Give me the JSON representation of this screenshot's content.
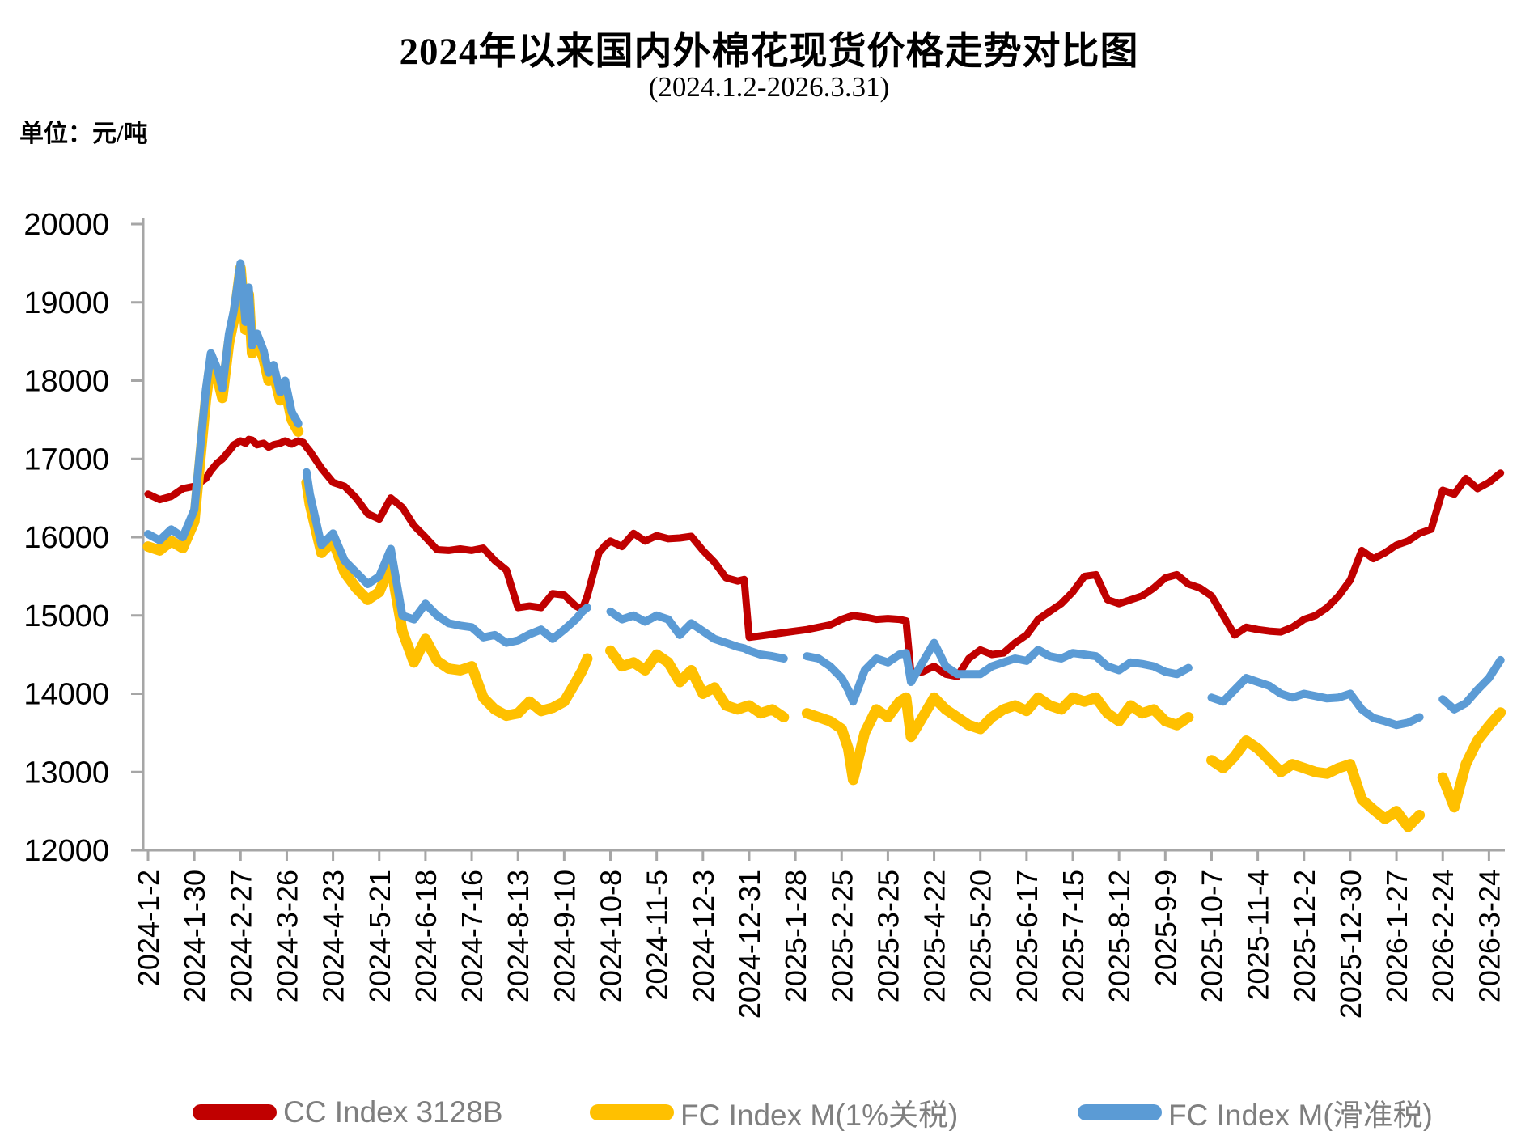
{
  "header": {
    "title": "2024年以来国内外棉花现货价格走势对比图",
    "subtitle": "(2024.1.2-2026.3.31)",
    "unit_label": "单位：元/吨"
  },
  "colors": {
    "cc_index_red": "#C00000",
    "fc_1pct_yellow": "#FFC000",
    "fc_sliding_blue": "#5B9BD5",
    "axis_gray": "#A6A6A6",
    "tick_text": "#000000",
    "legend_text": "#7F7F7F",
    "background": "#FFFFFF"
  },
  "chart_data": {
    "type": "line",
    "title": "2024年以来国内外棉花现货价格走势对比图",
    "subtitle": "(2024.1.2-2026.3.31)",
    "ylabel": "单位：元/吨",
    "xlabel": "",
    "grid": false,
    "legend_position": "bottom",
    "ylim": [
      12000,
      20000
    ],
    "y_tick_labels": [
      "20000",
      "19000",
      "18000",
      "17000",
      "16000",
      "15000",
      "14000",
      "13000",
      "12000"
    ],
    "y_ticks": [
      20000,
      19000,
      18000,
      17000,
      16000,
      15000,
      14000,
      13000,
      12000
    ],
    "x_start_date": "2024-1-2",
    "x_end_date": "2026-3-31",
    "x_tick_days": [
      0,
      28,
      56,
      84,
      112,
      140,
      168,
      196,
      224,
      252,
      280,
      308,
      336,
      364,
      392,
      420,
      448,
      476,
      504,
      532,
      560,
      588,
      616,
      644,
      672,
      700,
      728,
      756,
      784,
      812
    ],
    "x_tick_labels": [
      "2024-1-2",
      "2024-1-30",
      "2024-2-27",
      "2024-3-26",
      "2024-4-23",
      "2024-5-21",
      "2024-6-18",
      "2024-7-16",
      "2024-8-13",
      "2024-9-10",
      "2024-10-8",
      "2024-11-5",
      "2024-12-3",
      "2024-12-31",
      "2025-1-28",
      "2025-2-25",
      "2025-3-25",
      "2025-4-22",
      "2025-5-20",
      "2025-6-17",
      "2025-7-15",
      "2025-8-12",
      "2025-9-9",
      "2025-10-7",
      "2025-11-4",
      "2025-12-2",
      "2025-12-30",
      "2026-1-27",
      "2026-2-24",
      "2026-3-24"
    ],
    "x_days": [
      0,
      7,
      14,
      21,
      28,
      35,
      38,
      42,
      45,
      49,
      52,
      56,
      59,
      61,
      63,
      66,
      70,
      73,
      76,
      80,
      83,
      87,
      91,
      94,
      96,
      98,
      105,
      112,
      119,
      126,
      133,
      140,
      147,
      154,
      161,
      168,
      175,
      182,
      189,
      196,
      203,
      210,
      217,
      224,
      231,
      238,
      245,
      252,
      259,
      263,
      266,
      273,
      277,
      280,
      287,
      294,
      301,
      308,
      315,
      322,
      329,
      336,
      343,
      350,
      357,
      361,
      364,
      371,
      378,
      385,
      392,
      399,
      406,
      413,
      420,
      424,
      427,
      434,
      441,
      448,
      455,
      459,
      462,
      469,
      476,
      483,
      490,
      497,
      504,
      511,
      518,
      525,
      532,
      539,
      546,
      553,
      560,
      567,
      574,
      581,
      588,
      595,
      602,
      609,
      616,
      623,
      630,
      637,
      644,
      651,
      658,
      665,
      672,
      679,
      686,
      693,
      700,
      707,
      714,
      721,
      728,
      735,
      742,
      749,
      756,
      763,
      770,
      777,
      784,
      791,
      798,
      805,
      812,
      819
    ],
    "series": [
      {
        "name": "CC Index 3128B",
        "color": "#C00000",
        "values": [
          16550,
          16480,
          16520,
          16620,
          16650,
          16750,
          16850,
          16950,
          17000,
          17100,
          17180,
          17230,
          17200,
          17250,
          17240,
          17180,
          17200,
          17150,
          17180,
          17200,
          17230,
          17190,
          17230,
          17210,
          17150,
          17100,
          16880,
          16700,
          16650,
          16500,
          16300,
          16230,
          16500,
          16380,
          16150,
          16000,
          15840,
          15830,
          15850,
          15830,
          15860,
          15700,
          15580,
          15100,
          15120,
          15100,
          15280,
          15260,
          15120,
          15080,
          15250,
          15800,
          15900,
          15950,
          15880,
          16050,
          15950,
          16020,
          15980,
          15990,
          16010,
          15830,
          15680,
          15480,
          15440,
          15460,
          14720,
          14740,
          14760,
          14780,
          14800,
          14820,
          14850,
          14880,
          14950,
          14980,
          15000,
          14980,
          14950,
          14960,
          14950,
          14930,
          14250,
          14280,
          14350,
          14250,
          14220,
          14450,
          14560,
          14500,
          14520,
          14650,
          14750,
          14950,
          15050,
          15150,
          15300,
          15500,
          15520,
          15200,
          15150,
          15200,
          15250,
          15350,
          15480,
          15520,
          15400,
          15350,
          15250,
          15000,
          14750,
          14850,
          14820,
          14800,
          14790,
          14850,
          14950,
          15000,
          15100,
          15250,
          15450,
          15830,
          15725,
          15800,
          15900,
          15950,
          16050,
          16100,
          16600,
          16550,
          16750,
          16620,
          16700,
          16820
        ]
      },
      {
        "name": "FC Index M(1%关税)",
        "color": "#FFC000",
        "values": [
          15880,
          15830,
          15950,
          15860,
          16200,
          17750,
          18230,
          18030,
          17780,
          18480,
          18780,
          19440,
          18650,
          19100,
          18350,
          18500,
          18280,
          18000,
          18100,
          17750,
          17900,
          17500,
          17350,
          null,
          16700,
          16420,
          15800,
          15950,
          15550,
          15350,
          15200,
          15300,
          15650,
          14800,
          14400,
          14700,
          14420,
          14320,
          14300,
          14350,
          13950,
          13800,
          13720,
          13750,
          13900,
          13780,
          13820,
          13900,
          14150,
          14300,
          14450,
          null,
          null,
          14550,
          14350,
          14400,
          14300,
          14500,
          14400,
          14150,
          14300,
          14000,
          14080,
          13850,
          13800,
          13830,
          13850,
          13750,
          13800,
          13700,
          null,
          13750,
          13700,
          13650,
          13550,
          13300,
          12900,
          13500,
          13800,
          13700,
          13900,
          13950,
          13450,
          13700,
          13950,
          13800,
          13700,
          13600,
          13550,
          13700,
          13800,
          13850,
          13780,
          13950,
          13850,
          13800,
          13950,
          13900,
          13950,
          13750,
          13650,
          13850,
          13750,
          13800,
          13650,
          13600,
          13700,
          null,
          13150,
          13050,
          13200,
          13400,
          13300,
          13150,
          13000,
          13100,
          13050,
          13000,
          12980,
          13050,
          13100,
          12650,
          12520,
          12400,
          12500,
          12300,
          12450,
          null,
          12930,
          12550,
          13100,
          13400,
          13590,
          13760
        ]
      },
      {
        "name": "FC Index M(滑准税)",
        "color": "#5B9BD5",
        "values": [
          16040,
          15960,
          16100,
          16000,
          16350,
          17880,
          18350,
          18150,
          17900,
          18600,
          18900,
          19500,
          18750,
          19190,
          18450,
          18600,
          18380,
          18100,
          18200,
          17850,
          18000,
          17600,
          17450,
          null,
          16830,
          16550,
          15900,
          16050,
          15700,
          15550,
          15400,
          15500,
          15850,
          15000,
          14950,
          15150,
          15000,
          14900,
          14870,
          14850,
          14720,
          14750,
          14650,
          14680,
          14760,
          14820,
          14700,
          14820,
          14950,
          15050,
          15100,
          null,
          null,
          15050,
          14950,
          15000,
          14920,
          15000,
          14950,
          14750,
          14900,
          14800,
          14700,
          14650,
          14600,
          14580,
          14550,
          14500,
          14480,
          14450,
          null,
          14480,
          14450,
          14350,
          14200,
          14050,
          13900,
          14300,
          14450,
          14400,
          14500,
          14520,
          14150,
          14400,
          14650,
          14350,
          14250,
          14250,
          14250,
          14350,
          14400,
          14450,
          14420,
          14560,
          14480,
          14450,
          14520,
          14500,
          14480,
          14350,
          14300,
          14400,
          14380,
          14350,
          14280,
          14250,
          14330,
          null,
          13950,
          13900,
          14050,
          14200,
          14150,
          14100,
          14000,
          13950,
          14000,
          13970,
          13940,
          13950,
          14000,
          13800,
          13690,
          13650,
          13600,
          13630,
          13700,
          null,
          13930,
          13800,
          13880,
          14050,
          14200,
          14430
        ]
      }
    ]
  },
  "legend": {
    "items": [
      {
        "label": "CC Index 3128B"
      },
      {
        "label": "FC Index M(1%关税)"
      },
      {
        "label": "FC Index M(滑准税)"
      }
    ]
  }
}
